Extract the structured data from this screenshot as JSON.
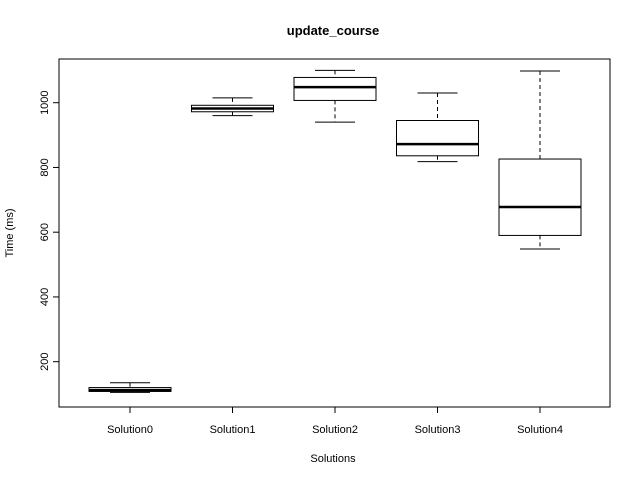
{
  "chart_data": {
    "type": "boxplot",
    "title": "update_course",
    "xlabel": "Solutions",
    "ylabel": "Time (ms)",
    "categories": [
      "Solution0",
      "Solution1",
      "Solution2",
      "Solution3",
      "Solution4"
    ],
    "boxes": [
      {
        "name": "Solution0",
        "min": 105,
        "q1": 108,
        "median": 112,
        "q3": 120,
        "max": 135
      },
      {
        "name": "Solution1",
        "min": 960,
        "q1": 972,
        "median": 982,
        "q3": 992,
        "max": 1015
      },
      {
        "name": "Solution2",
        "min": 940,
        "q1": 1007,
        "median": 1048,
        "q3": 1078,
        "max": 1100
      },
      {
        "name": "Solution3",
        "min": 818,
        "q1": 836,
        "median": 872,
        "q3": 945,
        "max": 1030
      },
      {
        "name": "Solution4",
        "min": 548,
        "q1": 590,
        "median": 678,
        "q3": 826,
        "max": 1098
      }
    ],
    "ylim": [
      60,
      1135
    ],
    "yticks": [
      200,
      400,
      600,
      800,
      1000
    ],
    "grid": false,
    "legend": "none"
  }
}
